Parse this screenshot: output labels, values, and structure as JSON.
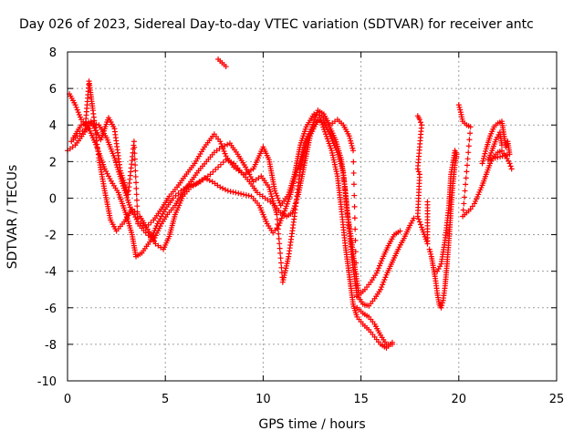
{
  "chart_data": {
    "type": "scatter",
    "title": "Day 026 of 2023, Sidereal Day-to-day VTEC variation (SDTVAR) for receiver antc",
    "xlabel": "GPS time / hours",
    "ylabel": "SDTVAR / TECUs",
    "xlim": [
      0,
      25
    ],
    "ylim": [
      -10,
      8
    ],
    "xticks": [
      0,
      5,
      10,
      15,
      20,
      25
    ],
    "yticks": [
      -10,
      -8,
      -6,
      -4,
      -2,
      0,
      2,
      4,
      6,
      8
    ],
    "grid": true,
    "marker": "+",
    "series": [
      {
        "name": "SDTVAR",
        "color": "#ff0000",
        "tracks": [
          [
            [
              0.0,
              2.6
            ],
            [
              0.4,
              2.9
            ],
            [
              0.8,
              3.5
            ],
            [
              1.2,
              4.1
            ],
            [
              1.6,
              4.0
            ],
            [
              2.0,
              3.3
            ],
            [
              2.4,
              2.2
            ],
            [
              2.8,
              0.8
            ],
            [
              3.2,
              -0.5
            ],
            [
              3.6,
              -1.3
            ],
            [
              4.0,
              -1.6
            ],
            [
              4.4,
              -1.2
            ],
            [
              4.8,
              -0.6
            ],
            [
              5.2,
              0.1
            ],
            [
              5.6,
              0.6
            ],
            [
              6.0,
              1.2
            ],
            [
              6.5,
              1.9
            ],
            [
              7.0,
              2.8
            ],
            [
              7.5,
              3.5
            ],
            [
              7.8,
              3.1
            ],
            [
              8.1,
              2.3
            ],
            [
              8.5,
              1.7
            ],
            [
              9.0,
              1.3
            ],
            [
              9.5,
              1.6
            ],
            [
              10.0,
              2.8
            ],
            [
              10.3,
              2.1
            ],
            [
              10.6,
              0.4
            ],
            [
              10.9,
              -0.4
            ],
            [
              11.3,
              0.2
            ],
            [
              11.6,
              1.3
            ],
            [
              11.9,
              2.9
            ],
            [
              12.2,
              3.9
            ],
            [
              12.6,
              4.6
            ],
            [
              13.0,
              4.5
            ],
            [
              13.4,
              3.9
            ],
            [
              13.7,
              3.2
            ],
            [
              14.0,
              2.1
            ],
            [
              14.2,
              0.4
            ],
            [
              14.4,
              -1.8
            ],
            [
              14.6,
              -3.8
            ],
            [
              14.8,
              -5.3
            ],
            [
              15.1,
              -5.8
            ],
            [
              15.4,
              -5.9
            ],
            [
              15.7,
              -5.5
            ],
            [
              16.0,
              -5.0
            ],
            [
              16.3,
              -4.2
            ],
            [
              16.6,
              -3.5
            ],
            [
              16.9,
              -2.8
            ],
            [
              17.2,
              -2.2
            ],
            [
              17.5,
              -1.5
            ],
            [
              17.7,
              -1.1
            ]
          ],
          [
            [
              0.1,
              5.7
            ],
            [
              0.4,
              5.1
            ],
            [
              0.7,
              4.3
            ],
            [
              1.1,
              3.8
            ],
            [
              1.5,
              2.8
            ],
            [
              1.9,
              1.6
            ],
            [
              2.3,
              0.8
            ],
            [
              2.6,
              0.3
            ],
            [
              3.0,
              -0.9
            ],
            [
              3.3,
              -2.0
            ],
            [
              3.5,
              -3.2
            ],
            [
              3.8,
              -3.0
            ],
            [
              4.2,
              -2.4
            ],
            [
              4.6,
              -1.4
            ],
            [
              5.0,
              -0.6
            ],
            [
              5.4,
              0.0
            ],
            [
              5.8,
              0.4
            ],
            [
              6.2,
              0.7
            ],
            [
              6.6,
              0.8
            ],
            [
              7.0,
              1.1
            ],
            [
              7.4,
              0.9
            ],
            [
              7.8,
              0.6
            ],
            [
              8.2,
              0.4
            ],
            [
              8.6,
              0.3
            ],
            [
              9.0,
              0.2
            ],
            [
              9.4,
              0.1
            ],
            [
              9.8,
              -0.4
            ],
            [
              10.2,
              -1.4
            ],
            [
              10.5,
              -1.9
            ],
            [
              10.8,
              -1.5
            ],
            [
              11.1,
              -0.7
            ],
            [
              11.4,
              0.2
            ],
            [
              11.7,
              1.4
            ],
            [
              12.0,
              2.4
            ],
            [
              12.3,
              3.3
            ],
            [
              12.6,
              4.0
            ],
            [
              12.9,
              4.4
            ],
            [
              13.2,
              3.5
            ],
            [
              13.5,
              2.6
            ],
            [
              13.8,
              1.2
            ],
            [
              14.0,
              -0.6
            ],
            [
              14.2,
              -2.6
            ],
            [
              14.4,
              -4.2
            ],
            [
              14.6,
              -5.8
            ],
            [
              14.8,
              -6.5
            ],
            [
              15.1,
              -6.9
            ],
            [
              15.4,
              -7.2
            ],
            [
              15.7,
              -7.6
            ],
            [
              16.0,
              -8.0
            ],
            [
              16.3,
              -8.2
            ],
            [
              16.6,
              -7.9
            ]
          ],
          [
            [
              0.2,
              3.1
            ],
            [
              0.5,
              3.4
            ],
            [
              0.9,
              3.8
            ],
            [
              1.1,
              6.4
            ],
            [
              1.3,
              4.8
            ],
            [
              1.6,
              2.2
            ],
            [
              1.9,
              0.4
            ],
            [
              2.2,
              -1.2
            ],
            [
              2.5,
              -1.8
            ],
            [
              2.9,
              -1.3
            ],
            [
              3.3,
              -0.6
            ],
            [
              3.7,
              -1.0
            ],
            [
              4.1,
              -1.7
            ],
            [
              4.5,
              -2.5
            ],
            [
              4.9,
              -2.8
            ],
            [
              5.2,
              -2.1
            ],
            [
              5.5,
              -0.9
            ],
            [
              5.9,
              0.1
            ],
            [
              6.3,
              0.6
            ],
            [
              6.8,
              0.9
            ],
            [
              7.3,
              1.3
            ],
            [
              7.7,
              1.7
            ],
            [
              8.1,
              2.1
            ],
            [
              8.5,
              1.9
            ],
            [
              8.9,
              1.4
            ],
            [
              9.3,
              0.9
            ],
            [
              9.7,
              0.3
            ],
            [
              10.1,
              0.0
            ],
            [
              10.5,
              -0.3
            ],
            [
              10.9,
              -0.8
            ],
            [
              11.2,
              -1.0
            ],
            [
              11.5,
              -0.8
            ],
            [
              11.8,
              0.2
            ],
            [
              12.1,
              1.8
            ],
            [
              12.4,
              3.4
            ],
            [
              12.8,
              4.3
            ],
            [
              13.1,
              4.1
            ],
            [
              13.4,
              3.5
            ],
            [
              13.8,
              2.5
            ],
            [
              14.1,
              1.4
            ],
            [
              14.3,
              -0.8
            ],
            [
              14.5,
              -2.2
            ],
            [
              14.7,
              -3.9
            ],
            [
              14.9,
              -5.3
            ],
            [
              15.2,
              -5.0
            ],
            [
              15.5,
              -4.6
            ],
            [
              15.8,
              -4.1
            ],
            [
              16.1,
              -3.3
            ],
            [
              16.4,
              -2.6
            ],
            [
              16.7,
              -2.0
            ],
            [
              17.0,
              -1.8
            ]
          ],
          [
            [
              0.3,
              3.3
            ],
            [
              0.7,
              4.0
            ],
            [
              1.2,
              4.2
            ],
            [
              1.7,
              3.2
            ],
            [
              2.1,
              4.4
            ],
            [
              2.4,
              3.8
            ],
            [
              2.7,
              1.5
            ],
            [
              3.1,
              0.2
            ],
            [
              3.4,
              3.1
            ],
            [
              3.6,
              -1.4
            ],
            [
              4.0,
              -1.9
            ],
            [
              4.4,
              -2.3
            ],
            [
              4.8,
              -1.4
            ],
            [
              5.1,
              -0.9
            ],
            [
              5.5,
              -0.4
            ],
            [
              5.9,
              0.3
            ],
            [
              6.3,
              0.9
            ],
            [
              6.7,
              1.5
            ],
            [
              7.1,
              2.0
            ],
            [
              7.5,
              2.5
            ],
            [
              7.9,
              2.8
            ],
            [
              8.3,
              3.0
            ],
            [
              8.7,
              2.4
            ],
            [
              9.1,
              1.7
            ],
            [
              9.5,
              0.9
            ],
            [
              9.9,
              1.2
            ],
            [
              10.3,
              0.6
            ],
            [
              10.7,
              -0.9
            ],
            [
              11.0,
              -4.6
            ],
            [
              11.3,
              -3.2
            ],
            [
              11.6,
              -1.0
            ],
            [
              11.9,
              1.6
            ],
            [
              12.2,
              3.1
            ],
            [
              12.5,
              3.9
            ],
            [
              12.8,
              4.8
            ],
            [
              13.1,
              4.6
            ],
            [
              13.4,
              4.0
            ],
            [
              13.8,
              4.3
            ],
            [
              14.1,
              4.0
            ],
            [
              14.4,
              3.4
            ],
            [
              14.6,
              2.6
            ],
            [
              14.8,
              -6.0
            ],
            [
              15.1,
              -6.3
            ],
            [
              15.4,
              -6.5
            ],
            [
              15.7,
              -6.9
            ],
            [
              16.0,
              -7.5
            ],
            [
              16.3,
              -8.0
            ],
            [
              16.6,
              -8.0
            ]
          ],
          [
            [
              7.7,
              7.6
            ],
            [
              7.8,
              7.5
            ],
            [
              7.9,
              7.4
            ],
            [
              8.0,
              7.3
            ],
            [
              8.1,
              7.2
            ]
          ],
          [
            [
              17.9,
              4.5
            ],
            [
              18.0,
              4.3
            ],
            [
              18.1,
              4.0
            ],
            [
              17.9,
              1.6
            ],
            [
              18.0,
              1.3
            ],
            [
              17.9,
              -1.0
            ],
            [
              18.0,
              -1.3
            ],
            [
              18.1,
              -1.6
            ],
            [
              18.4,
              -2.5
            ],
            [
              18.4,
              -0.2
            ]
          ],
          [
            [
              18.5,
              -2.8
            ],
            [
              18.6,
              -3.2
            ],
            [
              18.7,
              -3.8
            ],
            [
              18.8,
              -4.4
            ],
            [
              18.9,
              -5.2
            ],
            [
              19.0,
              -5.8
            ],
            [
              19.1,
              -6.0
            ],
            [
              19.2,
              -5.6
            ],
            [
              19.3,
              -4.8
            ],
            [
              19.4,
              -3.6
            ],
            [
              19.5,
              -2.2
            ],
            [
              19.6,
              -0.6
            ],
            [
              19.7,
              0.8
            ],
            [
              19.8,
              1.8
            ],
            [
              19.9,
              2.4
            ],
            [
              19.8,
              2.6
            ],
            [
              19.6,
              1.3
            ],
            [
              19.5,
              -0.4
            ],
            [
              19.3,
              -2.3
            ],
            [
              19.1,
              -3.6
            ],
            [
              18.9,
              -4.0
            ]
          ],
          [
            [
              20.0,
              5.1
            ],
            [
              20.1,
              4.7
            ],
            [
              20.2,
              4.2
            ],
            [
              20.4,
              4.0
            ],
            [
              20.6,
              3.9
            ],
            [
              20.2,
              -1.0
            ],
            [
              20.4,
              -0.8
            ],
            [
              20.6,
              -0.6
            ],
            [
              20.8,
              -0.3
            ],
            [
              21.0,
              0.2
            ],
            [
              21.2,
              0.7
            ],
            [
              21.4,
              1.3
            ],
            [
              21.6,
              1.9
            ],
            [
              21.8,
              2.3
            ],
            [
              22.0,
              2.5
            ],
            [
              22.2,
              2.6
            ],
            [
              22.4,
              2.3
            ],
            [
              22.6,
              1.9
            ],
            [
              22.7,
              1.6
            ]
          ],
          [
            [
              21.2,
              1.9
            ],
            [
              21.4,
              2.7
            ],
            [
              21.6,
              3.4
            ],
            [
              21.8,
              3.9
            ],
            [
              22.0,
              4.1
            ],
            [
              22.2,
              4.2
            ],
            [
              22.3,
              3.5
            ],
            [
              22.4,
              2.8
            ],
            [
              22.5,
              3.1
            ],
            [
              22.6,
              2.4
            ],
            [
              21.5,
              2.1
            ],
            [
              21.7,
              2.6
            ],
            [
              21.9,
              3.2
            ],
            [
              22.1,
              3.6
            ],
            [
              22.2,
              2.9
            ]
          ]
        ]
      }
    ]
  }
}
